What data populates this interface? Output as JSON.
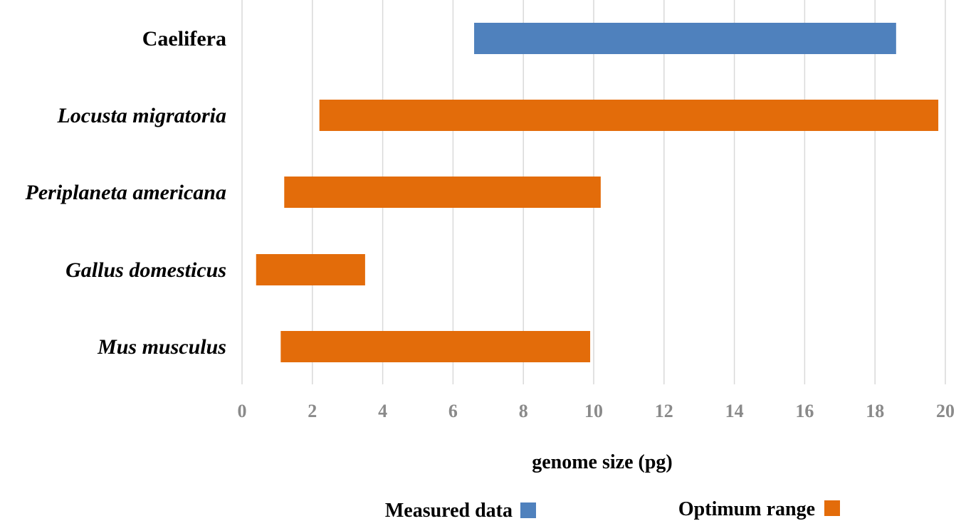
{
  "chart_data": {
    "type": "bar",
    "orientation": "horizontal",
    "subtype": "floating-range",
    "categories": [
      "Caelifera",
      "Locusta migratoria",
      "Periplaneta americana",
      "Gallus domesticus",
      "Mus musculus"
    ],
    "category_italic": [
      false,
      true,
      true,
      true,
      true
    ],
    "ranges": [
      {
        "category": "Caelifera",
        "start": 6.6,
        "end": 18.6,
        "series": "Measured data"
      },
      {
        "category": "Locusta migratoria",
        "start": 2.2,
        "end": 19.8,
        "series": "Optimum range"
      },
      {
        "category": "Periplaneta americana",
        "start": 1.2,
        "end": 10.2,
        "series": "Optimum range"
      },
      {
        "category": "Gallus domesticus",
        "start": 0.4,
        "end": 3.5,
        "series": "Optimum range"
      },
      {
        "category": "Mus musculus",
        "start": 1.1,
        "end": 9.9,
        "series": "Optimum range"
      }
    ],
    "series": [
      {
        "name": "Measured data",
        "color": "#4f81bd"
      },
      {
        "name": "Optimum range",
        "color": "#e36c0a"
      }
    ],
    "xlabel": "genome size (pg)",
    "ylabel": "",
    "title": "",
    "xlim": [
      0,
      20
    ],
    "xticks": [
      0,
      2,
      4,
      6,
      8,
      10,
      12,
      14,
      16,
      18,
      20
    ],
    "grid": "vertical",
    "legend_position": "bottom"
  }
}
